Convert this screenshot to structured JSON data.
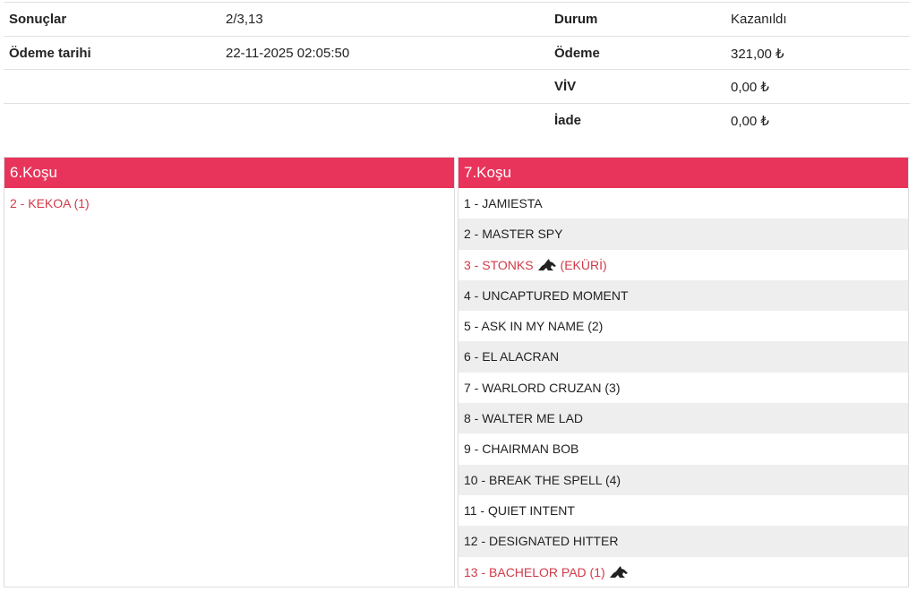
{
  "summary": {
    "left": [
      {
        "label": "Sonuçlar",
        "value": "2/3,13"
      },
      {
        "label": "Ödeme tarihi",
        "value": "22-11-2025 02:05:50"
      }
    ],
    "right": [
      {
        "label": "Durum",
        "value": "Kazanıldı"
      },
      {
        "label": "Ödeme",
        "value": "321,00 ₺"
      },
      {
        "label": "VİV",
        "value": "0,00 ₺"
      },
      {
        "label": "İade",
        "value": "0,00 ₺"
      }
    ]
  },
  "races": [
    {
      "title": "6.Koşu",
      "runners": [
        {
          "text": "2 - KEKOA (1)",
          "selected": true
        }
      ]
    },
    {
      "title": "7.Koşu",
      "runners": [
        {
          "text": "1 - JAMIESTA"
        },
        {
          "text": "2 - MASTER SPY"
        },
        {
          "text": "3 - STONKS",
          "selected": true,
          "icon": true,
          "note": "(EKÜRİ)"
        },
        {
          "text": "4 - UNCAPTURED MOMENT"
        },
        {
          "text": "5 - ASK IN MY NAME (2)"
        },
        {
          "text": "6 - EL ALACRAN"
        },
        {
          "text": "7 - WARLORD CRUZAN (3)"
        },
        {
          "text": "8 - WALTER ME LAD"
        },
        {
          "text": "9 - CHAIRMAN BOB"
        },
        {
          "text": "10 - BREAK THE SPELL (4)"
        },
        {
          "text": "11 - QUIET INTENT"
        },
        {
          "text": "12 - DESIGNATED HITTER"
        },
        {
          "text": "13 - BACHELOR PAD (1)",
          "selected": true,
          "icon": true
        }
      ]
    }
  ]
}
